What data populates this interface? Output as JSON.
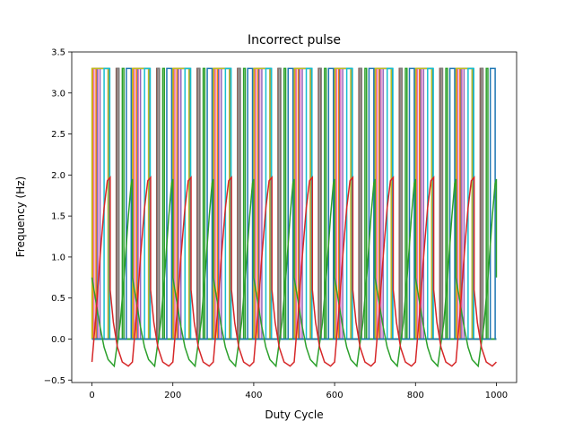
{
  "chart_data": {
    "type": "line",
    "title": "Incorrect pulse",
    "xlabel": "Duty Cycle",
    "ylabel": "Frequency (Hz)",
    "xlim": [
      -50,
      1050
    ],
    "ylim": [
      -0.53,
      3.5
    ],
    "xticks": [
      0,
      200,
      400,
      600,
      800,
      1000
    ],
    "xtick_labels": [
      "0",
      "200",
      "400",
      "600",
      "800",
      "1000"
    ],
    "yticks": [
      -0.5,
      0.0,
      0.5,
      1.0,
      1.5,
      2.0,
      2.5,
      3.0,
      3.5
    ],
    "ytick_labels": [
      "−0.5",
      "0.0",
      "0.5",
      "1.0",
      "1.5",
      "2.0",
      "2.5",
      "3.0",
      "3.5"
    ],
    "grid": false,
    "pulse_series": [
      {
        "color": "#1f77b4",
        "high": 3.3,
        "low": 0,
        "period": 100,
        "width": 30,
        "offset": 12
      },
      {
        "color": "#ff7f0e",
        "high": 3.3,
        "low": 0,
        "period": 100,
        "width": 8,
        "offset": 2
      },
      {
        "color": "#9467bd",
        "high": 3.3,
        "low": 0,
        "period": 100,
        "width": 20,
        "offset": 20
      },
      {
        "color": "#8c564b",
        "high": 3.3,
        "low": 0,
        "period": 100,
        "width": 6,
        "offset": 60
      },
      {
        "color": "#e377c2",
        "high": 3.3,
        "low": 0,
        "period": 100,
        "width": 10,
        "offset": 5
      },
      {
        "color": "#7f7f7f",
        "high": 3.3,
        "low": 0,
        "period": 100,
        "width": 5,
        "offset": 62
      },
      {
        "color": "#bcbd22",
        "high": 3.3,
        "low": 0,
        "period": 100,
        "width": 40,
        "offset": 0
      },
      {
        "color": "#17becf",
        "high": 3.3,
        "low": 0,
        "period": 100,
        "width": 14,
        "offset": 30
      },
      {
        "color": "#2ca02c",
        "high": 3.3,
        "low": 0,
        "period": 100,
        "width": 4,
        "offset": 75
      },
      {
        "color": "#1f77b4",
        "high": 3.3,
        "low": 0,
        "period": 100,
        "width": 12,
        "offset": 85
      }
    ],
    "wave_series": [
      {
        "name": "green",
        "color": "#2ca02c",
        "period": 100,
        "drop_at": 0,
        "x_end": 1000,
        "cycle_t": [
          0,
          10,
          20,
          30,
          40,
          55,
          70,
          80,
          90,
          97,
          100
        ],
        "cycle_y": [
          0.75,
          0.45,
          0.15,
          -0.1,
          -0.25,
          -0.33,
          0.2,
          0.8,
          1.5,
          1.9,
          1.95
        ]
      },
      {
        "name": "red",
        "color": "#d62728",
        "period": 100,
        "drop_at": 45,
        "x_end": 1000,
        "cycle_t": [
          0,
          8,
          18,
          30,
          45,
          55,
          65,
          75,
          85,
          93,
          100
        ],
        "cycle_y": [
          0.6,
          0.2,
          -0.1,
          -0.28,
          -0.33,
          -0.28,
          0.3,
          1.0,
          1.6,
          1.93,
          1.97
        ]
      }
    ]
  }
}
